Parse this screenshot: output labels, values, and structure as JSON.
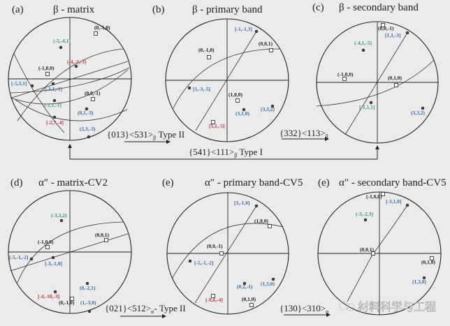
{
  "colors": {
    "black": "#222222",
    "blue": "#2f6fb3",
    "green": "#2e9e6c",
    "red": "#cf2e3a"
  },
  "panels": [
    {
      "tag": "(a)",
      "title": "β - matrix",
      "poles": [
        {
          "label": "(0,-1,0)",
          "color": "#222222",
          "mark": "square"
        },
        {
          "label": "(-5,-4,1)",
          "color": "#2e9e6c",
          "mark": "dot"
        },
        {
          "label": "(-4,-3,-3)",
          "color": "#cf2e3a",
          "mark": "dot"
        },
        {
          "label": "(-1,0,0)",
          "color": "#222222",
          "mark": "square"
        },
        {
          "label": "[-5,3,1]",
          "color": "#2f6fb3",
          "mark": "dot"
        },
        {
          "label": "[-3,1,-1]",
          "color": "#2f6fb3",
          "mark": "dot"
        },
        {
          "label": "(0,0,-1)",
          "color": "#222222",
          "mark": "square"
        },
        {
          "label": "[-1,1,-1]",
          "color": "#2e9e6c",
          "mark": "dot"
        },
        {
          "label": "(0,1,-3)",
          "color": "#2f6fb3",
          "mark": "dot"
        },
        {
          "label": "[-2,7,-4]",
          "color": "#cf2e3a",
          "mark": "dot"
        },
        {
          "label": "(2,3,-3)",
          "color": "#2f6fb3",
          "mark": "dot"
        }
      ]
    },
    {
      "tag": "(b)",
      "title": "β - primary band",
      "poles": [
        {
          "label": "[-1,-1,3]",
          "color": "#2f6fb3",
          "mark": "dot"
        },
        {
          "label": "(0,0,1)",
          "color": "#222222",
          "mark": "square"
        },
        {
          "label": "(0,-1,0)",
          "color": "#222222",
          "mark": "square"
        },
        {
          "label": "[1,-3,-5]",
          "color": "#2f6fb3",
          "mark": "dot"
        },
        {
          "label": "(1,0,0)",
          "color": "#222222",
          "mark": "square"
        },
        {
          "label": "(3,1,0)",
          "color": "#2f6fb3",
          "mark": "dot"
        },
        {
          "label": "(3,3,2)",
          "color": "#2f6fb3",
          "mark": "dot"
        },
        {
          "label": "[5,1,-5]",
          "color": "#cf2e3a",
          "mark": "square"
        }
      ]
    },
    {
      "tag": "(c)",
      "title": "β - secondary band",
      "poles": [
        {
          "label": "(0,0,-1)",
          "color": "#222222",
          "mark": "square"
        },
        {
          "label": "[1,1,-3]",
          "color": "#2f6fb3",
          "mark": "dot"
        },
        {
          "label": "(-4,1,-5)",
          "color": "#2e9e6c",
          "mark": "dot"
        },
        {
          "label": "(-1,0,0)",
          "color": "#222222",
          "mark": "square"
        },
        {
          "label": "(0,1,0)",
          "color": "#222222",
          "mark": "square"
        },
        {
          "label": "[-1,1,1]",
          "color": "#2e9e6c",
          "mark": "dot"
        },
        {
          "label": "(3,3,2)",
          "color": "#2f6fb3",
          "mark": "dot"
        }
      ]
    },
    {
      "tag": "(d)",
      "title": "α″ - matrix-CV2",
      "poles": [
        {
          "label": "(-3,3,2)",
          "color": "#2e9e6c",
          "mark": "dot"
        },
        {
          "label": "(0,0,1)",
          "color": "#222222",
          "mark": "square"
        },
        {
          "label": "(-1,0,0)",
          "color": "#222222",
          "mark": "square"
        },
        {
          "label": "[-5,-1,-2]",
          "color": "#2f6fb3",
          "mark": "dot"
        },
        {
          "label": "[-3,-1,0]",
          "color": "#2f6fb3",
          "mark": "dot"
        },
        {
          "label": "(0,-2,1)",
          "color": "#2f6fb3",
          "mark": "dot"
        },
        {
          "label": "[-4,-10,-3]",
          "color": "#cf2e3a",
          "mark": "dot"
        },
        {
          "label": "(0,-1,0)",
          "color": "#222222",
          "mark": "square"
        },
        {
          "label": "(1,-3,0)",
          "color": "#2f6fb3",
          "mark": "dot"
        }
      ]
    },
    {
      "tag": "(e)",
      "title": "α″ - primary band-CV5",
      "poles": [
        {
          "label": "[3,-1,0]",
          "color": "#2f6fb3",
          "mark": "dot"
        },
        {
          "label": "(1,0,0)",
          "color": "#222222",
          "mark": "square"
        },
        {
          "label": "(0,0,-1)",
          "color": "#222222",
          "mark": "square"
        },
        {
          "label": "[-5,-1,-2]",
          "color": "#2f6fb3",
          "mark": "dot"
        },
        {
          "label": "(0,2,-1)",
          "color": "#2f6fb3",
          "mark": "dot"
        },
        {
          "label": "(1,3,0)",
          "color": "#2f6fb3",
          "mark": "dot"
        },
        {
          "label": "[-9,6,-4]",
          "color": "#cf2e3a",
          "mark": "square"
        },
        {
          "label": "(0,1,0)",
          "color": "#222222",
          "mark": "square"
        }
      ]
    },
    {
      "tag": "(e)",
      "title": "α″ - secondary band-CV5",
      "poles": [
        {
          "label": "(-1,0,0)",
          "color": "#222222",
          "mark": "square"
        },
        {
          "label": "[-3,1,0]",
          "color": "#2f6fb3",
          "mark": "dot"
        },
        {
          "label": "(-3,-2,3)",
          "color": "#2e9e6c",
          "mark": "dot"
        },
        {
          "label": "(0,0,1)",
          "color": "#222222",
          "mark": "square"
        },
        {
          "label": "(0,1,0)",
          "color": "#222222",
          "mark": "square"
        },
        {
          "label": "(1,3,0)",
          "color": "#2f6fb3",
          "mark": "dot"
        }
      ]
    }
  ],
  "relations": {
    "a_b": {
      "text": "{013}<531>",
      "sub": "β",
      "suffix": " Type II"
    },
    "b_c": {
      "text": "{332}<113>",
      "sub": "β",
      "suffix": ""
    },
    "a_c": {
      "text": "{541}<111>",
      "sub": "β",
      "suffix": " Type I"
    },
    "d_e": {
      "text": "{021}<512>",
      "sub": "α",
      "suffix": "- Type II"
    },
    "e_f": {
      "text": "{130}<310>",
      "sub": "α",
      "suffix": ""
    }
  },
  "watermark": "材料科学与工程"
}
